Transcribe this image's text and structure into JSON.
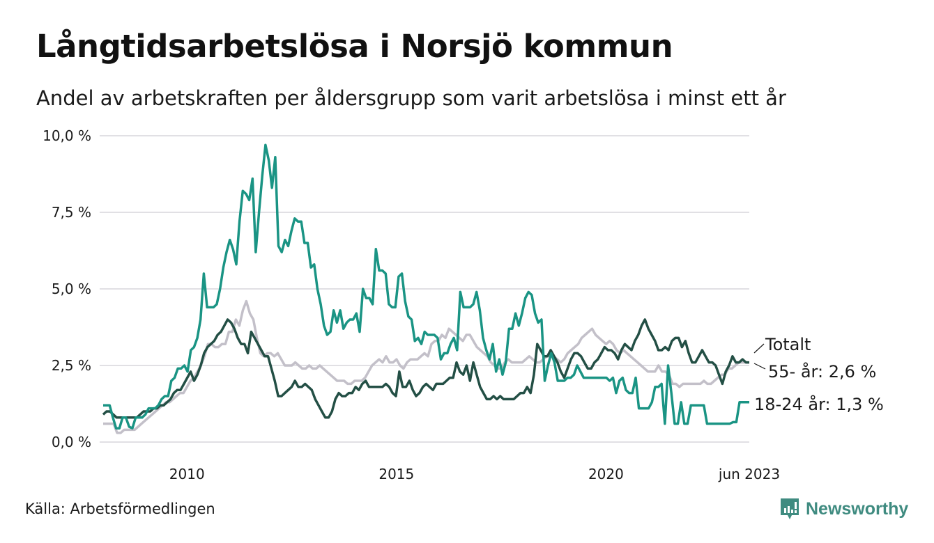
{
  "header": {
    "title": "Långtidsarbetslösa i Norsjö kommun",
    "subtitle": "Andel av arbetskraften per åldersgrupp som varit arbetslösa i minst ett år"
  },
  "footer": {
    "source": "Källa: Arbetsförmedlingen",
    "brand": "Newsworthy",
    "brand_icon": "bar-chart-speech-bubble-icon",
    "brand_color": "#3f8b80"
  },
  "chart_data": {
    "type": "line",
    "title": "Långtidsarbetslösa i Norsjö kommun",
    "subtitle": "Andel av arbetskraften per åldersgrupp som varit arbetslösa i minst ett år",
    "xlabel": "",
    "ylabel": "",
    "x_start": "2008-01",
    "x_end": "2023-06",
    "x_frequency": "monthly",
    "xlim": [
      2008.0,
      2023.42
    ],
    "ylim": [
      0,
      10
    ],
    "grid": true,
    "x_ticks": [
      {
        "value": 2010,
        "label": "2010"
      },
      {
        "value": 2015,
        "label": "2015"
      },
      {
        "value": 2020,
        "label": "2020"
      },
      {
        "value": 2023.42,
        "label": "jun 2023"
      }
    ],
    "y_ticks": [
      {
        "value": 0,
        "label": "0,0 %"
      },
      {
        "value": 2.5,
        "label": "2,5 %"
      },
      {
        "value": 5,
        "label": "5,0 %"
      },
      {
        "value": 7.5,
        "label": "7,5 %"
      },
      {
        "value": 10,
        "label": "10,0 %"
      }
    ],
    "legend": "end-labels-right",
    "series": [
      {
        "name": "Totalt",
        "end_label": "Totalt",
        "color": "#c3c0c9",
        "values": [
          0.6,
          0.6,
          0.6,
          0.6,
          0.3,
          0.3,
          0.4,
          0.4,
          0.4,
          0.4,
          0.5,
          0.6,
          0.7,
          0.8,
          0.9,
          1.0,
          1.1,
          1.2,
          1.3,
          1.3,
          1.4,
          1.5,
          1.6,
          1.6,
          1.8,
          2.0,
          2.1,
          2.3,
          2.5,
          2.8,
          3.2,
          3.2,
          3.1,
          3.1,
          3.2,
          3.2,
          3.6,
          3.6,
          4.0,
          3.8,
          4.3,
          4.6,
          4.2,
          4.0,
          3.4,
          2.9,
          2.8,
          2.9,
          2.9,
          2.8,
          2.9,
          2.7,
          2.5,
          2.5,
          2.5,
          2.6,
          2.5,
          2.4,
          2.4,
          2.5,
          2.4,
          2.4,
          2.5,
          2.4,
          2.3,
          2.2,
          2.1,
          2.0,
          2.0,
          2.0,
          1.9,
          1.9,
          2.0,
          2.0,
          2.0,
          2.1,
          2.3,
          2.5,
          2.6,
          2.7,
          2.6,
          2.8,
          2.6,
          2.6,
          2.7,
          2.5,
          2.4,
          2.6,
          2.7,
          2.7,
          2.7,
          2.8,
          2.9,
          2.8,
          3.2,
          3.3,
          3.3,
          3.5,
          3.4,
          3.7,
          3.6,
          3.5,
          3.4,
          3.3,
          3.5,
          3.5,
          3.3,
          3.1,
          3.0,
          2.9,
          2.8,
          2.6,
          2.5,
          2.4,
          2.4,
          2.6,
          2.7,
          2.6,
          2.6,
          2.6,
          2.6,
          2.7,
          2.8,
          2.7,
          2.6,
          2.6,
          2.7,
          2.8,
          2.8,
          2.8,
          2.7,
          2.6,
          2.7,
          2.9,
          3.0,
          3.1,
          3.2,
          3.4,
          3.5,
          3.6,
          3.7,
          3.5,
          3.4,
          3.3,
          3.2,
          3.3,
          3.2,
          3.0,
          2.9,
          3.0,
          2.9,
          2.8,
          2.7,
          2.6,
          2.5,
          2.4,
          2.3,
          2.3,
          2.3,
          2.5,
          2.3,
          2.3,
          2.2,
          1.9,
          1.9,
          1.8,
          1.9,
          1.9,
          1.9,
          1.9,
          1.9,
          1.9,
          2.0,
          1.9,
          1.9,
          2.0,
          2.1,
          2.2,
          2.2,
          2.4,
          2.4,
          2.5,
          2.6,
          2.6,
          2.6,
          2.6
        ]
      },
      {
        "name": "55- år",
        "end_label": "55- år: 2,6 %",
        "color": "#234f45",
        "values": [
          0.9,
          1.0,
          1.0,
          0.9,
          0.8,
          0.8,
          0.8,
          0.8,
          0.8,
          0.8,
          0.8,
          0.9,
          1.0,
          1.0,
          1.0,
          1.1,
          1.1,
          1.2,
          1.2,
          1.3,
          1.4,
          1.6,
          1.7,
          1.7,
          1.9,
          2.1,
          2.3,
          2.0,
          2.2,
          2.5,
          2.9,
          3.1,
          3.2,
          3.3,
          3.5,
          3.6,
          3.8,
          4.0,
          3.9,
          3.7,
          3.4,
          3.2,
          3.2,
          2.9,
          3.6,
          3.4,
          3.2,
          3.0,
          2.8,
          2.8,
          2.4,
          2.0,
          1.5,
          1.5,
          1.6,
          1.7,
          1.8,
          2.0,
          1.8,
          1.8,
          1.9,
          1.8,
          1.7,
          1.4,
          1.2,
          1.0,
          0.8,
          0.8,
          1.0,
          1.4,
          1.6,
          1.5,
          1.5,
          1.6,
          1.6,
          1.8,
          1.7,
          1.9,
          2.0,
          1.8,
          1.8,
          1.8,
          1.8,
          1.8,
          1.9,
          1.8,
          1.6,
          1.5,
          2.3,
          1.8,
          1.8,
          2.0,
          1.7,
          1.5,
          1.6,
          1.8,
          1.9,
          1.8,
          1.7,
          1.9,
          1.9,
          1.9,
          2.0,
          2.1,
          2.1,
          2.6,
          2.3,
          2.2,
          2.5,
          2.0,
          2.6,
          2.2,
          1.8,
          1.6,
          1.4,
          1.4,
          1.5,
          1.4,
          1.5,
          1.4,
          1.4,
          1.4,
          1.4,
          1.5,
          1.6,
          1.6,
          1.8,
          1.6,
          2.2,
          3.2,
          3.0,
          2.8,
          2.8,
          3.0,
          2.8,
          2.6,
          2.3,
          2.1,
          2.4,
          2.7,
          2.9,
          2.9,
          2.8,
          2.6,
          2.4,
          2.4,
          2.6,
          2.7,
          2.9,
          3.1,
          3.0,
          3.0,
          2.9,
          2.7,
          3.0,
          3.2,
          3.1,
          3.0,
          3.3,
          3.5,
          3.8,
          4.0,
          3.7,
          3.5,
          3.3,
          3.0,
          3.0,
          3.1,
          3.0,
          3.3,
          3.4,
          3.4,
          3.1,
          3.3,
          2.9,
          2.6,
          2.6,
          2.8,
          3.0,
          2.8,
          2.6,
          2.6,
          2.5,
          2.2,
          1.9,
          2.3,
          2.5,
          2.8,
          2.6,
          2.6,
          2.7,
          2.6,
          2.6
        ]
      },
      {
        "name": "18-24 år",
        "end_label": "18-24 år: 1,3 %",
        "color": "#1a9484",
        "values": [
          1.2,
          1.2,
          1.2,
          0.8,
          0.45,
          0.45,
          0.8,
          0.8,
          0.5,
          0.45,
          0.8,
          0.8,
          0.8,
          0.9,
          1.1,
          1.1,
          1.1,
          1.2,
          1.4,
          1.5,
          1.5,
          2.0,
          2.1,
          2.4,
          2.4,
          2.5,
          2.3,
          3.0,
          3.1,
          3.4,
          4.0,
          5.5,
          4.4,
          4.4,
          4.4,
          4.5,
          5.0,
          5.7,
          6.2,
          6.6,
          6.3,
          5.8,
          7.2,
          8.2,
          8.1,
          7.9,
          8.6,
          6.2,
          7.5,
          8.7,
          9.7,
          9.2,
          8.3,
          9.3,
          6.4,
          6.2,
          6.6,
          6.4,
          6.9,
          7.3,
          7.2,
          7.2,
          6.5,
          6.5,
          5.7,
          5.8,
          5.0,
          4.5,
          3.8,
          3.5,
          3.6,
          4.3,
          3.9,
          4.3,
          3.7,
          3.9,
          4.0,
          4.0,
          4.2,
          3.6,
          5.0,
          4.7,
          4.7,
          4.5,
          6.3,
          5.6,
          5.6,
          5.5,
          4.5,
          4.4,
          4.4,
          5.4,
          5.5,
          4.6,
          4.1,
          4.0,
          3.3,
          3.4,
          3.2,
          3.6,
          3.5,
          3.5,
          3.5,
          3.4,
          2.7,
          2.9,
          2.9,
          3.2,
          3.4,
          3.0,
          4.9,
          4.4,
          4.4,
          4.4,
          4.5,
          4.9,
          4.3,
          3.4,
          3.0,
          2.7,
          3.2,
          2.3,
          2.7,
          2.2,
          2.6,
          3.7,
          3.7,
          4.2,
          3.8,
          4.2,
          4.7,
          4.9,
          4.8,
          4.2,
          3.9,
          4.0,
          2.0,
          2.5,
          2.9,
          2.6,
          2.0,
          2.0,
          2.0,
          2.1,
          2.1,
          2.2,
          2.5,
          2.3,
          2.1,
          2.1,
          2.1,
          2.1,
          2.1,
          2.1,
          2.1,
          2.1,
          2.0,
          2.1,
          1.6,
          2.0,
          2.1,
          1.7,
          1.6,
          1.6,
          2.1,
          1.1,
          1.1,
          1.1,
          1.1,
          1.3,
          1.8,
          1.8,
          1.9,
          0.6,
          2.5,
          1.6,
          0.6,
          0.6,
          1.3,
          0.6,
          0.6,
          1.2,
          1.2,
          1.2,
          1.2,
          1.2,
          0.6,
          0.6,
          0.6,
          0.6,
          0.6,
          0.6,
          0.6,
          0.6,
          0.65,
          0.65,
          1.3,
          1.3,
          1.3,
          1.3
        ]
      }
    ]
  }
}
